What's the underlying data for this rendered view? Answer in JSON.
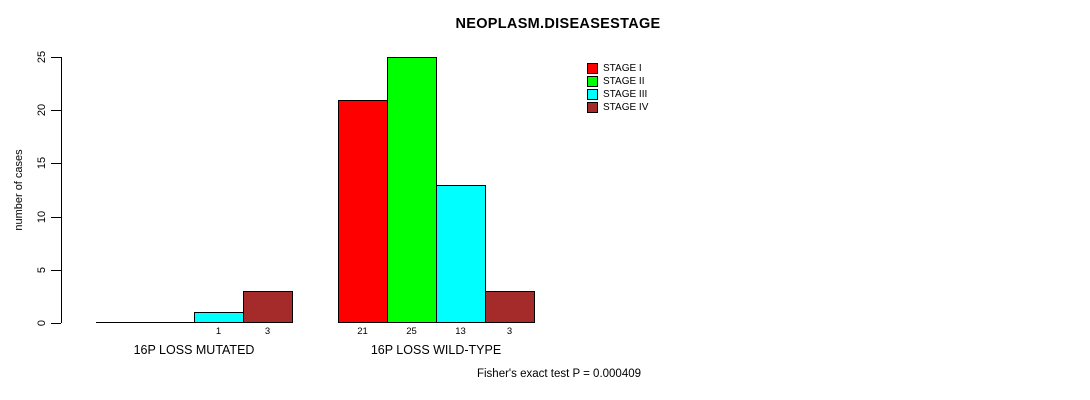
{
  "chart_data": {
    "type": "bar",
    "title": "NEOPLASM.DISEASESTAGE",
    "xlabel": "",
    "ylabel": "number of cases",
    "ylim": [
      0,
      25
    ],
    "yticks": [
      0,
      5,
      10,
      15,
      20,
      25
    ],
    "grid": false,
    "legend_position": "top-right",
    "categories": [
      "16P LOSS MUTATED",
      "16P LOSS WILD-TYPE"
    ],
    "series": [
      {
        "name": "STAGE I",
        "color": "#FF0000",
        "values": [
          0,
          21
        ]
      },
      {
        "name": "STAGE II",
        "color": "#00FF00",
        "values": [
          0,
          25
        ]
      },
      {
        "name": "STAGE III",
        "color": "#00FFFF",
        "values": [
          1,
          13
        ]
      },
      {
        "name": "STAGE IV",
        "color": "#A52A2A",
        "values": [
          3,
          3
        ]
      }
    ],
    "bar_value_labels": "shown under each nonzero bar",
    "annotation": "Fisher's exact test P = 0.000409"
  },
  "colors": {
    "stage_i": "#FF0000",
    "stage_ii": "#00FF00",
    "stage_iii": "#00FFFF",
    "stage_iv": "#A52A2A",
    "axis": "#000000",
    "background": "#FFFFFF"
  }
}
